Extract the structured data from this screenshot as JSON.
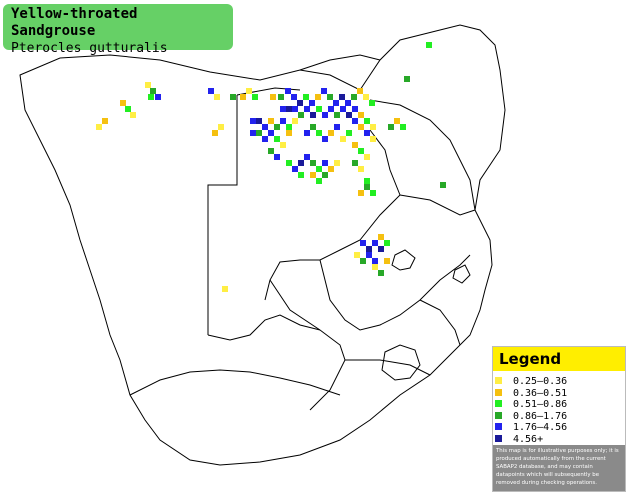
{
  "title": {
    "common_name": "Yellow-throated Sandgrouse",
    "scientific_name": "Pterocles gutturalis"
  },
  "legend": {
    "heading": "Legend",
    "ranges": [
      {
        "label": "0.25–0.36",
        "color": "#ffee44"
      },
      {
        "label": "0.36–0.51",
        "color": "#f5c010"
      },
      {
        "label": "0.51–0.86",
        "color": "#22ee22"
      },
      {
        "label": "0.86–1.76",
        "color": "#28a828"
      },
      {
        "label": "1.76–4.56",
        "color": "#2222ee"
      },
      {
        "label": "4.56+",
        "color": "#1a1a99"
      }
    ],
    "disclaimer": "This map is for illustrative purposes only; it is produced automatically from the current SABAP2 database, and may contain datapoints which will subsequently be removed during checking operations."
  },
  "colors": {
    "title_bg": "#66d066",
    "legend_head_bg": "#ffee00",
    "border_line": "#000000"
  }
}
